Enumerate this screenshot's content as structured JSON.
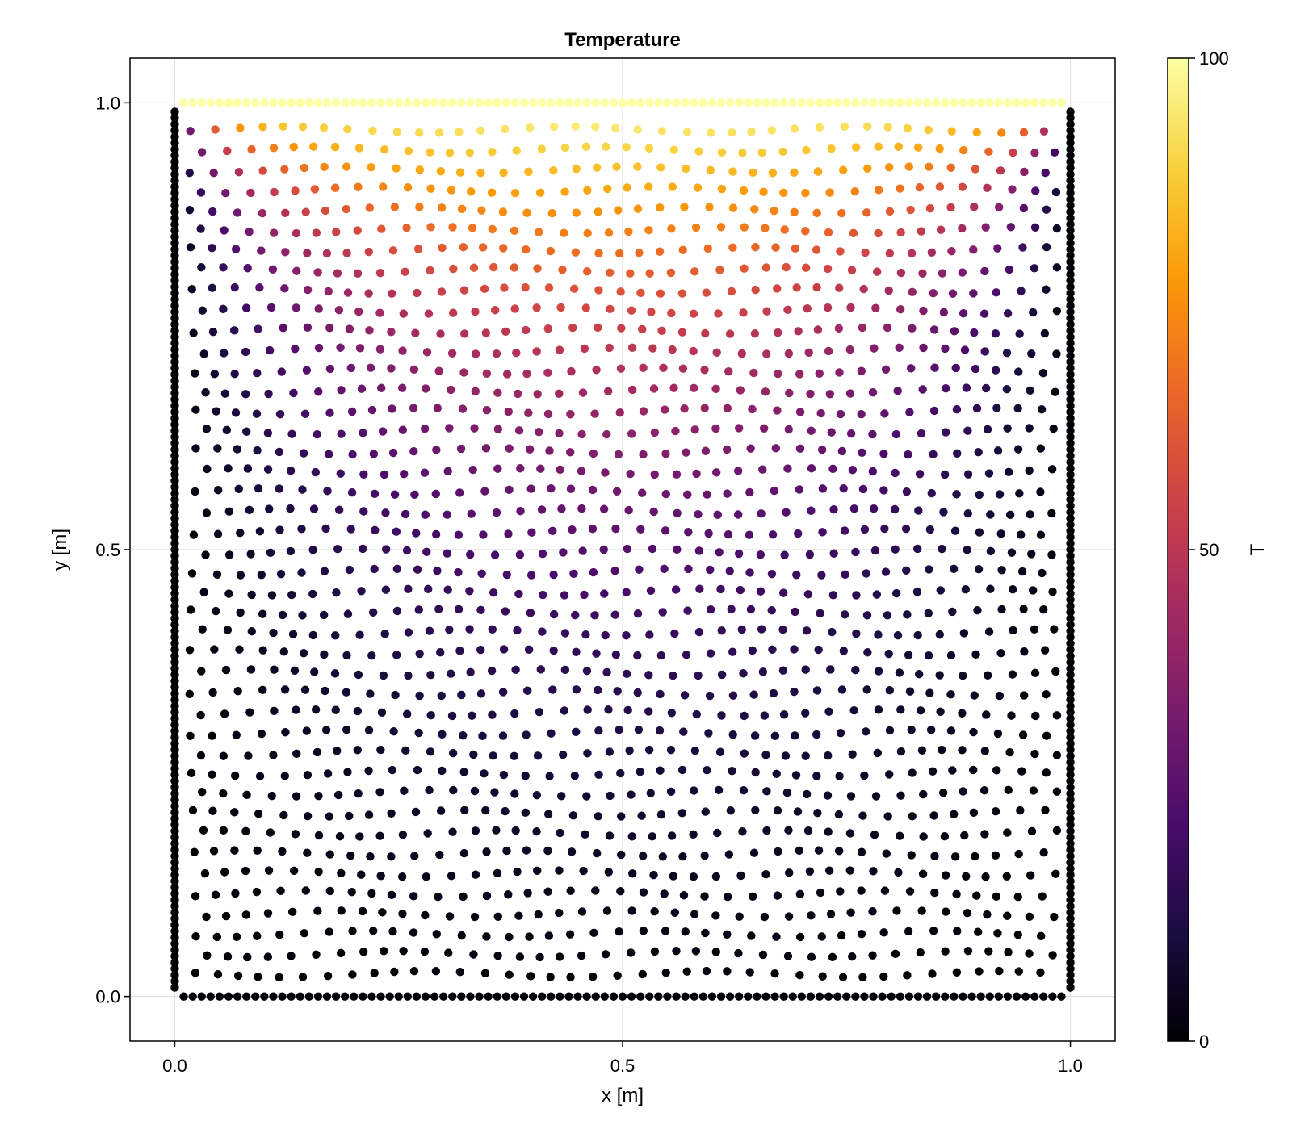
{
  "chart_data": {
    "type": "scatter",
    "title": "Temperature",
    "xlabel": "x [m]",
    "ylabel": "y [m]",
    "xlim": [
      -0.05,
      1.05
    ],
    "ylim": [
      -0.05,
      1.05
    ],
    "x_ticks": [
      0.0,
      0.5,
      1.0
    ],
    "x_tick_labels": [
      "0.0",
      "0.5",
      "1.0"
    ],
    "y_ticks": [
      0.0,
      0.5,
      1.0
    ],
    "y_tick_labels": [
      "0.0",
      "0.5",
      "1.0"
    ],
    "grid": true,
    "colorbar": {
      "label": "T",
      "colormap": "inferno",
      "range": [
        0,
        100
      ],
      "ticks": [
        0,
        50,
        100
      ],
      "tick_labels": [
        "0",
        "50",
        "100"
      ]
    },
    "field_description": "T = 100 along top boundary y = 1; T = 0 along x = 0, x = 1 and y = 0; interior nodes show steady-state heat diffusion",
    "boundary_spacing": {
      "top": 0.01,
      "bottom": 0.01,
      "left": 0.007,
      "right": 0.007
    },
    "interior_spacing": 0.025
  },
  "colors": {
    "background": "#ffffff",
    "axes_frame": "#000000",
    "grid": "#e2e2e2",
    "inferno_stops": [
      "#000004",
      "#1b0c41",
      "#4a0c6b",
      "#781c6d",
      "#a52c60",
      "#cf4446",
      "#ed6925",
      "#fb9b06",
      "#f7d13d",
      "#fcffa4"
    ]
  }
}
